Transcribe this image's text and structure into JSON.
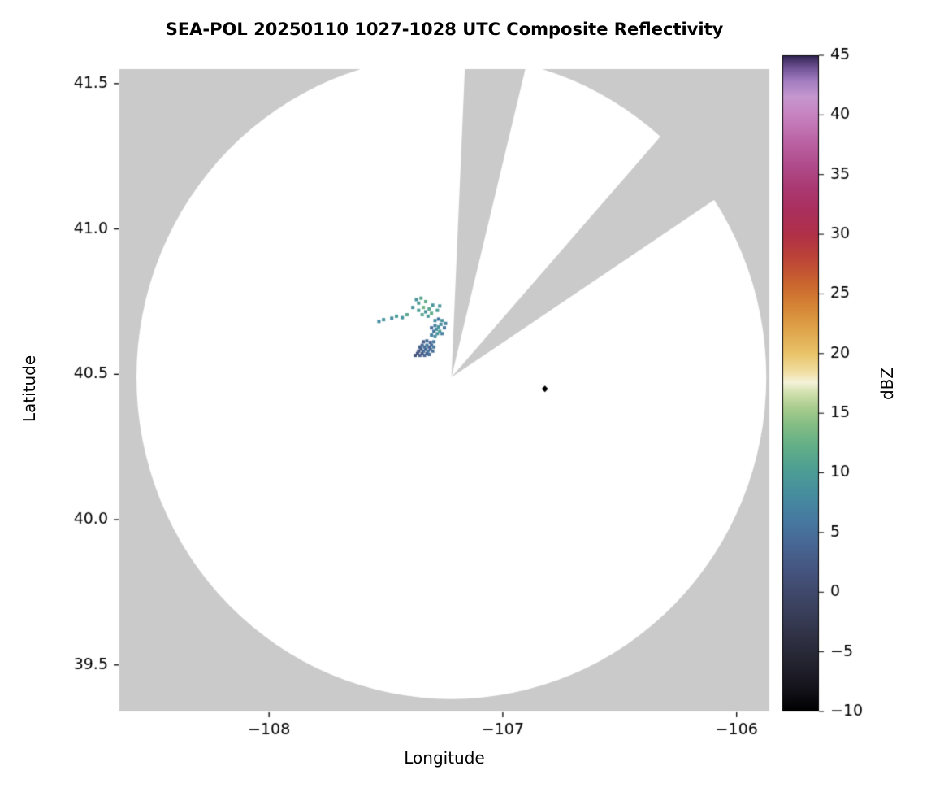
{
  "chart_data": {
    "type": "heatmap",
    "title": "SEA-POL 20250110 1027-1028 UTC Composite Reflectivity",
    "xlabel": "Longitude",
    "ylabel": "Latitude",
    "colorbar_label": "dBZ",
    "xlim": [
      -108.64,
      -105.86
    ],
    "ylim": [
      39.34,
      41.55
    ],
    "grid": false,
    "xticks": {
      "values": [
        -108,
        -107,
        -106
      ],
      "labels": [
        "−108",
        "−107",
        "−106"
      ]
    },
    "yticks": {
      "values": [
        41.5,
        41.0,
        40.5,
        40.0,
        39.5
      ],
      "labels": [
        "41.5",
        "41.0",
        "40.5",
        "40.0",
        "39.5"
      ]
    },
    "colorbar": {
      "min": -10,
      "max": 45,
      "tick_values": [
        45,
        40,
        35,
        30,
        25,
        20,
        15,
        10,
        5,
        0,
        -5,
        -10
      ],
      "tick_labels": [
        "45",
        "40",
        "35",
        "30",
        "25",
        "20",
        "15",
        "10",
        "5",
        "0",
        "−5",
        "−10"
      ],
      "stops": [
        [
          -10,
          "#000000"
        ],
        [
          -8,
          "#15141d"
        ],
        [
          -6,
          "#23232f"
        ],
        [
          -4,
          "#2e3042"
        ],
        [
          -2,
          "#383d57"
        ],
        [
          0,
          "#40496c"
        ],
        [
          2,
          "#455681"
        ],
        [
          4,
          "#486794"
        ],
        [
          6,
          "#47799f"
        ],
        [
          8,
          "#468b9f"
        ],
        [
          10,
          "#4c9c96"
        ],
        [
          12,
          "#5fad88"
        ],
        [
          14,
          "#83bd84"
        ],
        [
          15.5,
          "#aacd8e"
        ],
        [
          16.8,
          "#d5e2b2"
        ],
        [
          17.6,
          "#f5f2d9"
        ],
        [
          18.4,
          "#f1e0a5"
        ],
        [
          20,
          "#e9c368"
        ],
        [
          22,
          "#dfa44b"
        ],
        [
          24,
          "#d58435"
        ],
        [
          26,
          "#c9632f"
        ],
        [
          28,
          "#bc4438"
        ],
        [
          30,
          "#b03048"
        ],
        [
          32,
          "#aa2f5d"
        ],
        [
          34,
          "#aa3a74"
        ],
        [
          36,
          "#b14e8e"
        ],
        [
          38,
          "#bc66a7"
        ],
        [
          40,
          "#c783c0"
        ],
        [
          41.5,
          "#c697d0"
        ],
        [
          42.8,
          "#a47ec0"
        ],
        [
          43.8,
          "#77589b"
        ],
        [
          44.5,
          "#4e3a71"
        ],
        [
          45,
          "#2f2350"
        ]
      ]
    },
    "coverage": {
      "center_lon": -107.22,
      "center_lat": 40.49,
      "radius_lon_deg": 1.347,
      "radius_lat_deg": 1.107,
      "outside_color": "#cacaca",
      "inside_color": "#ffffff",
      "blocked_sectors_azimuth_deg": [
        [
          2.5,
          13.5
        ],
        [
          41,
          56
        ]
      ]
    },
    "echoes": [
      [
        -107.375,
        40.565,
        1
      ],
      [
        -107.365,
        40.572,
        2
      ],
      [
        -107.355,
        40.565,
        3
      ],
      [
        -107.345,
        40.572,
        2
      ],
      [
        -107.335,
        40.565,
        4
      ],
      [
        -107.325,
        40.572,
        3
      ],
      [
        -107.315,
        40.568,
        5
      ],
      [
        -107.36,
        40.58,
        2
      ],
      [
        -107.35,
        40.586,
        3
      ],
      [
        -107.34,
        40.58,
        5
      ],
      [
        -107.33,
        40.586,
        4
      ],
      [
        -107.32,
        40.58,
        6
      ],
      [
        -107.31,
        40.586,
        4
      ],
      [
        -107.3,
        40.58,
        5
      ],
      [
        -107.355,
        40.594,
        3
      ],
      [
        -107.345,
        40.6,
        4
      ],
      [
        -107.335,
        40.594,
        5
      ],
      [
        -107.325,
        40.6,
        6
      ],
      [
        -107.315,
        40.594,
        4
      ],
      [
        -107.305,
        40.6,
        5
      ],
      [
        -107.295,
        40.594,
        6
      ],
      [
        -107.34,
        40.612,
        3
      ],
      [
        -107.325,
        40.615,
        5
      ],
      [
        -107.31,
        40.61,
        4
      ],
      [
        -107.295,
        40.612,
        6
      ],
      [
        -107.305,
        40.635,
        7
      ],
      [
        -107.29,
        40.63,
        8
      ],
      [
        -107.28,
        40.64,
        9
      ],
      [
        -107.295,
        40.648,
        6
      ],
      [
        -107.285,
        40.655,
        8
      ],
      [
        -107.27,
        40.648,
        10
      ],
      [
        -107.26,
        40.64,
        7
      ],
      [
        -107.275,
        40.663,
        9
      ],
      [
        -107.29,
        40.668,
        7
      ],
      [
        -107.305,
        40.66,
        5
      ],
      [
        -107.265,
        40.672,
        8
      ],
      [
        -107.25,
        40.66,
        6
      ],
      [
        -107.245,
        40.675,
        7
      ],
      [
        -107.26,
        40.685,
        9
      ],
      [
        -107.275,
        40.69,
        6
      ],
      [
        -107.29,
        40.685,
        8
      ],
      [
        -107.32,
        40.7,
        10
      ],
      [
        -107.305,
        40.71,
        12
      ],
      [
        -107.33,
        40.715,
        9
      ],
      [
        -107.345,
        40.705,
        11
      ],
      [
        -107.36,
        40.72,
        10
      ],
      [
        -107.34,
        40.73,
        13
      ],
      [
        -107.315,
        40.725,
        11
      ],
      [
        -107.3,
        40.738,
        9
      ],
      [
        -107.33,
        40.75,
        12
      ],
      [
        -107.36,
        40.745,
        10
      ],
      [
        -107.385,
        40.73,
        9
      ],
      [
        -107.41,
        40.705,
        11
      ],
      [
        -107.43,
        40.695,
        9
      ],
      [
        -107.455,
        40.7,
        10
      ],
      [
        -107.475,
        40.693,
        8
      ],
      [
        -107.28,
        40.72,
        10
      ],
      [
        -107.27,
        40.735,
        9
      ],
      [
        -107.35,
        40.762,
        11
      ],
      [
        -107.37,
        40.757,
        9
      ],
      [
        -107.51,
        40.688,
        9
      ],
      [
        -107.53,
        40.682,
        8
      ]
    ],
    "isolated_echo": {
      "lon": -106.82,
      "lat": 40.45,
      "dbz": -10
    }
  }
}
